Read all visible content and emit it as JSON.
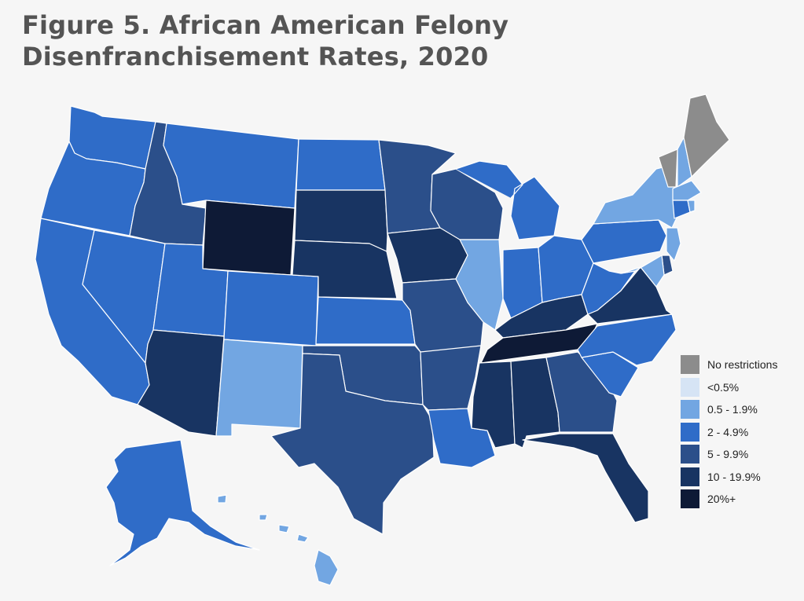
{
  "title": "Figure 5. African American Felony Disenfranchisement Rates, 2020",
  "legend": [
    {
      "label": "No restrictions",
      "color": "#8c8c8c",
      "key": "none"
    },
    {
      "label": "<0.5%",
      "color": "#d6e4f5",
      "key": "c1"
    },
    {
      "label": "0.5 - 1.9%",
      "color": "#72a6e2",
      "key": "c2"
    },
    {
      "label": "2 - 4.9%",
      "color": "#2f6cc8",
      "key": "c3"
    },
    {
      "label": "5 - 9.9%",
      "color": "#2b4f8a",
      "key": "c4"
    },
    {
      "label": "10 - 19.9%",
      "color": "#183462",
      "key": "c5"
    },
    {
      "label": "20%+",
      "color": "#0e1a36",
      "key": "c6"
    }
  ],
  "states": {
    "WA": "c3",
    "OR": "c3",
    "CA": "c3",
    "NV": "c3",
    "ID": "c4",
    "MT": "c3",
    "WY": "c6",
    "UT": "c3",
    "AZ": "c5",
    "CO": "c3",
    "NM": "c2",
    "ND": "c3",
    "SD": "c5",
    "NE": "c5",
    "KS": "c3",
    "OK": "c4",
    "TX": "c4",
    "MN": "c4",
    "IA": "c5",
    "MO": "c4",
    "AR": "c4",
    "LA": "c3",
    "WI": "c4",
    "IL": "c2",
    "MI": "c3",
    "IN": "c3",
    "OH": "c3",
    "KY": "c5",
    "TN": "c6",
    "MS": "c5",
    "AL": "c5",
    "GA": "c4",
    "FL": "c5",
    "SC": "c3",
    "NC": "c3",
    "VA": "c5",
    "WV": "c3",
    "PA": "c3",
    "NY": "c2",
    "VT": "none",
    "ME": "none",
    "NH": "c2",
    "MA": "c2",
    "CT": "c3",
    "RI": "c2",
    "NJ": "c2",
    "DE": "c4",
    "MD": "c2",
    "AK": "c3",
    "HI": "c2"
  }
}
